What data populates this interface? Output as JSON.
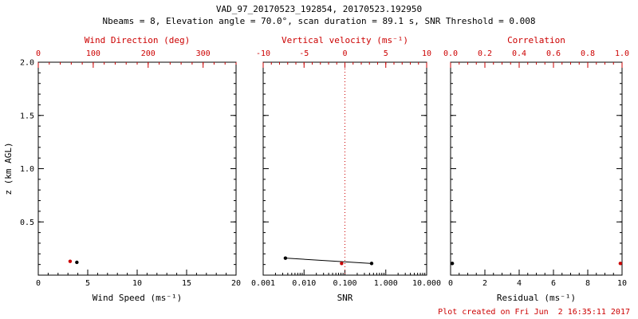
{
  "header": {
    "title": "VAD_97_20170523_192854, 20170523.192950",
    "subtitle": "Nbeams = 8, Elevation angle = 70.0°, scan duration = 89.1 s, SNR Threshold = 0.008"
  },
  "footer": {
    "created_text": "Plot created on Fri Jun  2 16:35:11 2017"
  },
  "colors": {
    "axis_black": "#000000",
    "accent_red": "#cc0000",
    "background": "#ffffff"
  },
  "chart_data": [
    {
      "type": "scatter",
      "name": "wind-speed-panel",
      "ylabel": "z (km AGL)",
      "y_axis": {
        "range": [
          0,
          2
        ],
        "major": [
          0.5,
          1.0,
          1.5,
          2.0
        ],
        "labels": [
          "0.5",
          "1.0",
          "1.5",
          "2.0"
        ],
        "minor_step": 0.1,
        "show_labels": true
      },
      "bottom_axis": {
        "label": "Wind Speed (ms⁻¹)",
        "scale": "linear",
        "range": [
          0,
          20
        ],
        "major": [
          0,
          5,
          10,
          15,
          20
        ],
        "labels": [
          "0",
          "5",
          "10",
          "15",
          "20"
        ],
        "minor_step": 1,
        "color": "#000000"
      },
      "top_axis": {
        "label": "Wind Direction (deg)",
        "scale": "linear",
        "range": [
          0,
          360
        ],
        "major": [
          0,
          100,
          200,
          300
        ],
        "labels": [
          "0",
          "100",
          "200",
          "300"
        ],
        "minor_step": 20,
        "color": "#cc0000"
      },
      "series": [
        {
          "name": "wind-speed",
          "axis": "bottom",
          "color": "#000000",
          "line": false,
          "points": [
            [
              3.9,
              0.12
            ]
          ]
        },
        {
          "name": "wind-direction",
          "axis": "top",
          "color": "#cc0000",
          "line": false,
          "points": [
            [
              58,
              0.13
            ]
          ]
        }
      ]
    },
    {
      "type": "scatter",
      "name": "snr-panel",
      "ylabel": "",
      "y_axis": {
        "range": [
          0,
          2
        ],
        "major": [
          0.5,
          1.0,
          1.5,
          2.0
        ],
        "labels": [
          "0.5",
          "1.0",
          "1.5",
          "2.0"
        ],
        "minor_step": 0.1,
        "show_labels": false
      },
      "bottom_axis": {
        "label": "SNR",
        "scale": "log",
        "range": [
          0.001,
          10
        ],
        "major": [
          0.001,
          0.01,
          0.1,
          1,
          10
        ],
        "labels": [
          "0.001",
          "0.010",
          "0.100",
          "1.000",
          "10.000"
        ],
        "color": "#000000"
      },
      "top_axis": {
        "label": "Vertical velocity (ms⁻¹)",
        "scale": "linear",
        "range": [
          -10,
          10
        ],
        "major": [
          -10,
          -5,
          0,
          5,
          10
        ],
        "labels": [
          "-10",
          "-5",
          "0",
          "5",
          "10"
        ],
        "minor_step": 1,
        "color": "#cc0000"
      },
      "reference_line": {
        "axis": "top",
        "value": 0,
        "style": "dotted",
        "color": "#cc0000"
      },
      "series": [
        {
          "name": "snr",
          "axis": "bottom",
          "color": "#000000",
          "line": true,
          "points": [
            [
              0.0035,
              0.16
            ],
            [
              0.45,
              0.11
            ]
          ]
        },
        {
          "name": "vertical-velocity",
          "axis": "top",
          "color": "#cc0000",
          "line": false,
          "points": [
            [
              -0.4,
              0.11
            ]
          ]
        }
      ]
    },
    {
      "type": "scatter",
      "name": "residual-panel",
      "ylabel": "",
      "y_axis": {
        "range": [
          0,
          2
        ],
        "major": [
          0.5,
          1.0,
          1.5,
          2.0
        ],
        "labels": [
          "0.5",
          "1.0",
          "1.5",
          "2.0"
        ],
        "minor_step": 0.1,
        "show_labels": false
      },
      "bottom_axis": {
        "label": "Residual (ms⁻¹)",
        "scale": "linear",
        "range": [
          0,
          10
        ],
        "major": [
          0,
          2,
          4,
          6,
          8,
          10
        ],
        "labels": [
          "0",
          "2",
          "4",
          "6",
          "8",
          "10"
        ],
        "minor_step": 0.5,
        "color": "#000000"
      },
      "top_axis": {
        "label": "Correlation",
        "scale": "linear",
        "range": [
          0,
          1
        ],
        "major": [
          0.0,
          0.2,
          0.4,
          0.6,
          0.8,
          1.0
        ],
        "labels": [
          "0.0",
          "0.2",
          "0.4",
          "0.6",
          "0.8",
          "1.0"
        ],
        "minor_step": 0.05,
        "color": "#cc0000"
      },
      "series": [
        {
          "name": "residual",
          "axis": "bottom",
          "color": "#000000",
          "line": false,
          "points": [
            [
              0.1,
              0.11
            ]
          ]
        },
        {
          "name": "correlation",
          "axis": "top",
          "color": "#cc0000",
          "line": false,
          "points": [
            [
              0.99,
              0.11
            ]
          ]
        }
      ]
    }
  ]
}
